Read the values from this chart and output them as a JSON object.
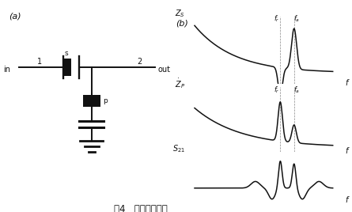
{
  "fig_label_a": "(a)",
  "fig_label_b": "(b)",
  "caption": "图4   滤波器原理图",
  "bg_color": "#ffffff",
  "line_color": "#111111",
  "in_label": "in",
  "out_label": "out",
  "s_label": "s",
  "p_label": "p",
  "node1": "1",
  "node2": "2",
  "zs_label": "$Z_S$",
  "zp_label": "$\\dot{Z}_P$",
  "s21_label": "$S_{21}$",
  "f_label": "f",
  "fr_label": "$f_r$",
  "fa_label": "$f_a$",
  "fr": 0.62,
  "fa": 0.72
}
